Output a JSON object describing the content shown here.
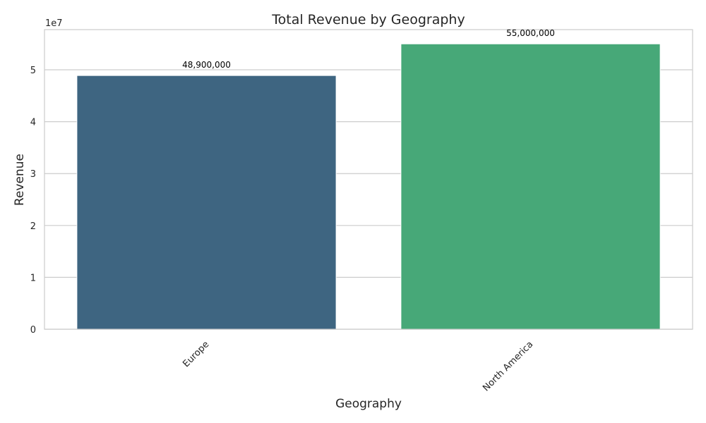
{
  "chart_data": {
    "type": "bar",
    "title": "Total Revenue by Geography",
    "xlabel": "Geography",
    "ylabel": "Revenue",
    "categories": [
      "Europe",
      "North America"
    ],
    "values": [
      48900000,
      55000000
    ],
    "data_labels": [
      "48,900,000",
      "55,000,000"
    ],
    "colors": [
      "#3e6581",
      "#47a878"
    ],
    "ylim": [
      0,
      57750000
    ],
    "yticks": [
      0,
      10000000,
      20000000,
      30000000,
      40000000,
      50000000
    ],
    "ytick_labels": [
      "0",
      "1",
      "2",
      "3",
      "4",
      "5"
    ],
    "yaxis_multiplier": "1e7",
    "grid": true,
    "grid_axis": "y",
    "legend": "none"
  }
}
